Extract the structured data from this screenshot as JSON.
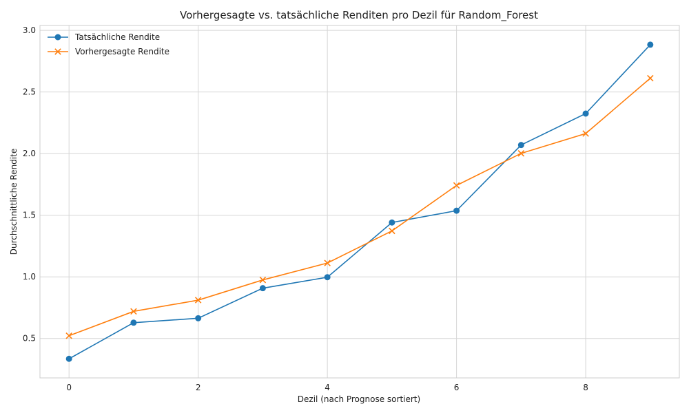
{
  "chart_data": {
    "type": "line",
    "title": "Vorhergesagte vs. tatsächliche Renditen pro Dezil für Random_Forest",
    "xlabel": "Dezil (nach Prognose sortiert)",
    "ylabel": "Durchschnittliche Rendite",
    "x": [
      0,
      1,
      2,
      3,
      4,
      5,
      6,
      7,
      8,
      9
    ],
    "xlim": [
      -0.45,
      9.45
    ],
    "ylim": [
      0.18,
      3.04
    ],
    "xticks": [
      0,
      2,
      4,
      6,
      8
    ],
    "yticks": [
      0.5,
      1.0,
      1.5,
      2.0,
      2.5,
      3.0
    ],
    "xtick_labels": [
      "0",
      "2",
      "4",
      "6",
      "8"
    ],
    "ytick_labels": [
      "0.5",
      "1.0",
      "1.5",
      "2.0",
      "2.5",
      "3.0"
    ],
    "grid": true,
    "legend_position": "top-left",
    "series": [
      {
        "name": "Tatsächliche Rendite",
        "marker": "circle",
        "color": "#1f77b4",
        "values": [
          0.335,
          0.628,
          0.664,
          0.908,
          0.997,
          1.441,
          1.537,
          2.07,
          2.325,
          2.884
        ]
      },
      {
        "name": "Vorhergesagte Rendite",
        "marker": "x",
        "color": "#ff7f0e",
        "values": [
          0.522,
          0.72,
          0.811,
          0.975,
          1.112,
          1.373,
          1.742,
          2.002,
          2.163,
          2.612
        ]
      }
    ]
  }
}
